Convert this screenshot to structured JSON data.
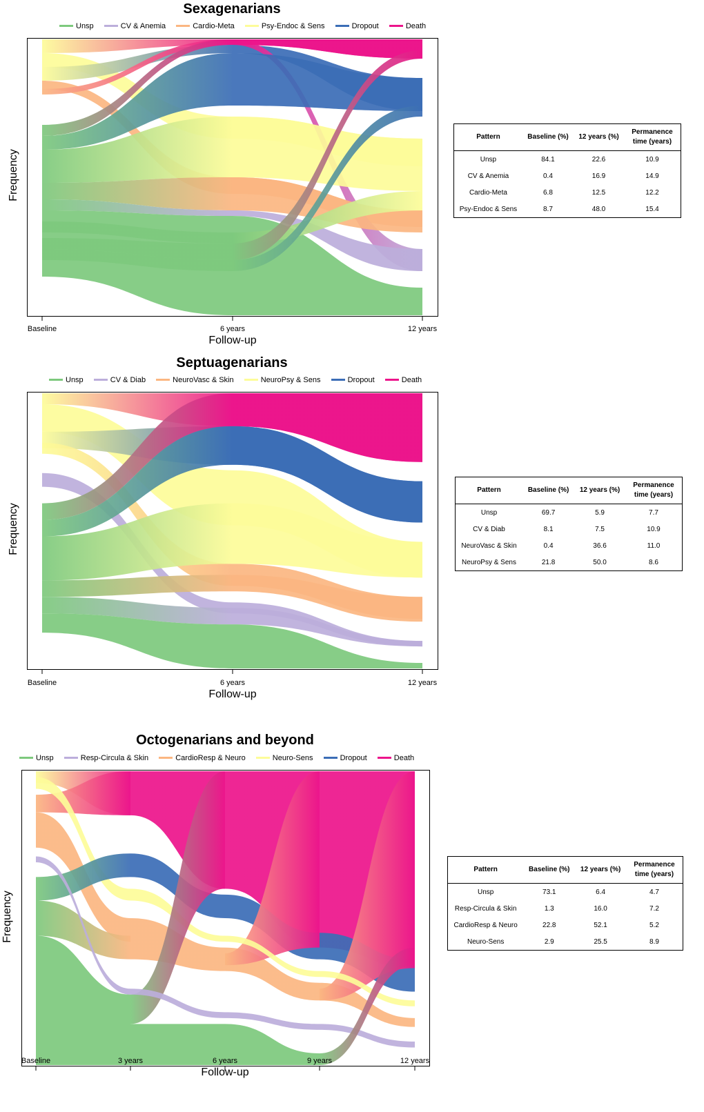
{
  "colors": {
    "unsp": "#7dc97d",
    "p2": "#bcaedb",
    "p3": "#fbb681",
    "p4": "#fdfc99",
    "dropout": "#3b6db6",
    "death": "#ec148b"
  },
  "axis_labels": {
    "ylabel": "Frequency",
    "xlabel": "Follow-up"
  },
  "table_headers": [
    "Pattern",
    "Baseline (%)",
    "12 years (%)",
    "Permanence time (years)"
  ],
  "chart_data": [
    {
      "type": "alluvial",
      "title": "Sexagenarians",
      "legend": [
        "Unsp",
        "CV & Anemia",
        "Cardio-Meta",
        "Psy-Endoc & Sens",
        "Dropout",
        "Death"
      ],
      "timepoints": [
        "Baseline",
        "6 years",
        "12 years"
      ],
      "table": [
        {
          "pattern": "Unsp",
          "baseline": "84.1",
          "y12": "22.6",
          "permanence": "10.9"
        },
        {
          "pattern": "CV & Anemia",
          "baseline": "0.4",
          "y12": "16.9",
          "permanence": "14.9"
        },
        {
          "pattern": "Cardio-Meta",
          "baseline": "6.8",
          "y12": "12.5",
          "permanence": "12.2"
        },
        {
          "pattern": "Psy-Endoc & Sens",
          "baseline": "8.7",
          "y12": "48.0",
          "permanence": "15.4"
        }
      ],
      "flows": [
        {
          "from": [
            "p4",
            0.0,
            0.05
          ],
          "to": [
            "death",
            0.0,
            0.02
          ],
          "to2": [
            "death",
            0.0,
            0.07
          ]
        },
        {
          "from": [
            "p4",
            0.05,
            0.1
          ],
          "to": [
            "p4",
            0.28,
            0.36
          ],
          "to2": [
            "p4",
            0.36,
            0.46
          ]
        },
        {
          "from": [
            "p4",
            0.1,
            0.15
          ],
          "to": [
            "dropout",
            0.02,
            0.05
          ],
          "to2": [
            "dropout",
            0.14,
            0.26
          ]
        },
        {
          "from": [
            "p3",
            0.15,
            0.18
          ],
          "to": [
            "p3",
            0.5,
            0.56
          ],
          "to2": [
            "p3",
            0.62,
            0.68
          ]
        },
        {
          "from": [
            "p3",
            0.18,
            0.2
          ],
          "to": [
            "death",
            0.0,
            0.02
          ],
          "to2": [
            "p2",
            0.76,
            0.84
          ]
        },
        {
          "from": [
            "unsp",
            0.31,
            0.35
          ],
          "to": [
            "death",
            0.0,
            0.02
          ],
          "to2": [
            "death",
            0.0,
            0.07
          ]
        },
        {
          "from": [
            "unsp",
            0.35,
            0.4
          ],
          "to": [
            "dropout",
            0.05,
            0.24
          ],
          "to2": [
            "dropout",
            0.14,
            0.26
          ]
        },
        {
          "from": [
            "unsp",
            0.4,
            0.52
          ],
          "to": [
            "p4",
            0.28,
            0.5
          ],
          "to2": [
            "p4",
            0.36,
            0.55
          ]
        },
        {
          "from": [
            "unsp",
            0.52,
            0.58
          ],
          "to": [
            "p3",
            0.5,
            0.62
          ],
          "to2": [
            "p3",
            0.62,
            0.7
          ]
        },
        {
          "from": [
            "unsp",
            0.58,
            0.62
          ],
          "to": [
            "p2",
            0.62,
            0.64
          ],
          "to2": [
            "p2",
            0.76,
            0.84
          ]
        },
        {
          "from": [
            "unsp",
            0.62,
            0.86
          ],
          "to": [
            "unsp",
            0.64,
            1.0
          ],
          "to2": [
            "unsp",
            0.9,
            1.0
          ]
        },
        {
          "from": [
            "unsp",
            0.66,
            0.7
          ],
          "to": [
            "unsp",
            0.7,
            0.74
          ],
          "to2": [
            "p4",
            0.55,
            0.62
          ]
        },
        {
          "from": [
            "unsp",
            0.72,
            0.76
          ],
          "to": [
            "unsp",
            0.74,
            0.8
          ],
          "to2": [
            "death",
            0.04,
            0.07
          ]
        },
        {
          "from": [
            "unsp",
            0.76,
            0.8
          ],
          "to": [
            "unsp",
            0.8,
            0.84
          ],
          "to2": [
            "dropout",
            0.24,
            0.28
          ]
        }
      ]
    },
    {
      "type": "alluvial",
      "title": "Septuagenarians",
      "legend": [
        "Unsp",
        "CV & Diab",
        "NeuroVasc & Skin",
        "NeuroPsy & Sens",
        "Dropout",
        "Death"
      ],
      "timepoints": [
        "Baseline",
        "6 years",
        "12 years"
      ],
      "table": [
        {
          "pattern": "Unsp",
          "baseline": "69.7",
          "y12": "5.9",
          "permanence": "7.7"
        },
        {
          "pattern": "CV & Diab",
          "baseline": "8.1",
          "y12": "7.5",
          "permanence": "10.9"
        },
        {
          "pattern": "NeuroVasc & Skin",
          "baseline": "0.4",
          "y12": "36.6",
          "permanence": "11.0"
        },
        {
          "pattern": "NeuroPsy & Sens",
          "baseline": "21.8",
          "y12": "50.0",
          "permanence": "8.6"
        }
      ],
      "flows": [
        {
          "from": [
            "p4",
            0.0,
            0.04
          ],
          "to": [
            "death",
            0.0,
            0.12
          ],
          "to2": [
            "death",
            0.0,
            0.25
          ]
        },
        {
          "from": [
            "p4",
            0.04,
            0.14
          ],
          "to": [
            "p4",
            0.28,
            0.48
          ],
          "to2": [
            "p4",
            0.54,
            0.67
          ]
        },
        {
          "from": [
            "p4",
            0.14,
            0.2
          ],
          "to": [
            "dropout",
            0.12,
            0.26
          ],
          "to2": [
            "dropout",
            0.32,
            0.47
          ]
        },
        {
          "from": [
            "p4",
            0.18,
            0.22
          ],
          "to": [
            "p3",
            0.62,
            0.7
          ],
          "to2": [
            "p3",
            0.74,
            0.82
          ]
        },
        {
          "from": [
            "p2",
            0.29,
            0.34
          ],
          "to": [
            "p2",
            0.76,
            0.8
          ],
          "to2": [
            "p2",
            0.9,
            0.92
          ]
        },
        {
          "from": [
            "unsp",
            0.4,
            0.46
          ],
          "to": [
            "death",
            0.0,
            0.12
          ],
          "to2": [
            "death",
            0.0,
            0.25
          ]
        },
        {
          "from": [
            "unsp",
            0.46,
            0.52
          ],
          "to": [
            "dropout",
            0.12,
            0.26
          ],
          "to2": [
            "dropout",
            0.32,
            0.47
          ]
        },
        {
          "from": [
            "unsp",
            0.52,
            0.68
          ],
          "to": [
            "p4",
            0.4,
            0.62
          ],
          "to2": [
            "p4",
            0.54,
            0.67
          ]
        },
        {
          "from": [
            "unsp",
            0.68,
            0.74
          ],
          "to": [
            "p3",
            0.66,
            0.72
          ],
          "to2": [
            "p3",
            0.74,
            0.83
          ]
        },
        {
          "from": [
            "unsp",
            0.74,
            0.8
          ],
          "to": [
            "p2",
            0.78,
            0.84
          ],
          "to2": [
            "p2",
            0.9,
            0.92
          ]
        },
        {
          "from": [
            "unsp",
            0.8,
            0.87
          ],
          "to": [
            "unsp",
            0.84,
            1.0
          ],
          "to2": [
            "unsp",
            0.98,
            1.0
          ]
        }
      ]
    },
    {
      "type": "alluvial",
      "title": "Octogenarians and beyond",
      "legend": [
        "Unsp",
        "Resp-Circula & Skin",
        "CardioResp & Neuro",
        "Neuro-Sens",
        "Dropout",
        "Death"
      ],
      "timepoints": [
        "Baseline",
        "3 years",
        "6 years",
        "9 years",
        "12 years"
      ],
      "table": [
        {
          "pattern": "Unsp",
          "baseline": "73.1",
          "y12": "6.4",
          "permanence": "4.7"
        },
        {
          "pattern": "Resp-Circula & Skin",
          "baseline": "1.3",
          "y12": "16.0",
          "permanence": "7.2"
        },
        {
          "pattern": "CardioResp & Neuro",
          "baseline": "22.8",
          "y12": "52.1",
          "permanence": "5.2"
        },
        {
          "pattern": "Neuro-Sens",
          "baseline": "2.9",
          "y12": "25.5",
          "permanence": "8.9"
        }
      ],
      "flows": []
    }
  ]
}
